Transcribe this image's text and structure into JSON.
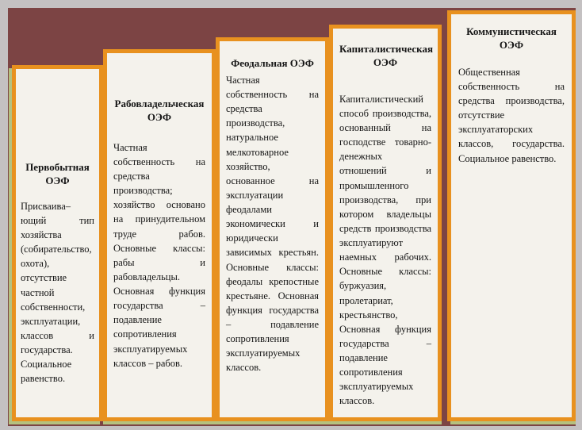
{
  "diagram": {
    "description": "Staircase diagram of socio-economic formations (OEF), Russian",
    "cards": [
      {
        "id": "primitive",
        "title": "Первобытная ОЭФ",
        "body": "Присваива–ющий тип хозяйства (собирательство, охота), отсутствие частной собственности, эксплуатации, классов и государства. Социальное равенство."
      },
      {
        "id": "slaveholding",
        "title": "Рабовладельческая ОЭФ",
        "body": "Частная собственность на средства производства; хозяйство основано на принудительном труде рабов. Основные классы: рабы и рабовладельцы. Основная функция государства – подавление сопротивления эксплуатируемых классов – рабов."
      },
      {
        "id": "feudal",
        "title": "Феодальная ОЭФ",
        "body": "Частная собственность на средства производства, натуральное мелкотоварное хозяйство, основанное на эксплуатации феодалами экономически и юридически зависимых крестьян. Основные классы: феодалы крепостные крестьяне. Основная функция государства – подавление сопротивления эксплуатируемых классов."
      },
      {
        "id": "capitalist",
        "title": "Капиталистическая ОЭФ",
        "body": "Капиталистический способ производства, основанный на господстве товарно-денежных отношений и промышленного производства, при котором владельцы средств производства эксплуатируют наемных рабочих. Основные классы: буржуазия, пролетариат, крестьянство, Основная функция государства – подавление сопротивления эксплуатируемых классов."
      },
      {
        "id": "communist",
        "title": "Коммунистическая ОЭФ",
        "body": "Общественная собственность на средства производства, отсутствие эксплуататорских классов, государства. Социальное равенство."
      }
    ]
  },
  "colors": {
    "frame": "#c4c1c2",
    "background": "#7c4444",
    "card_border": "#e8911f",
    "card_bg": "#f4f2ec",
    "shadow": "#b5c17f",
    "text": "#151515"
  }
}
